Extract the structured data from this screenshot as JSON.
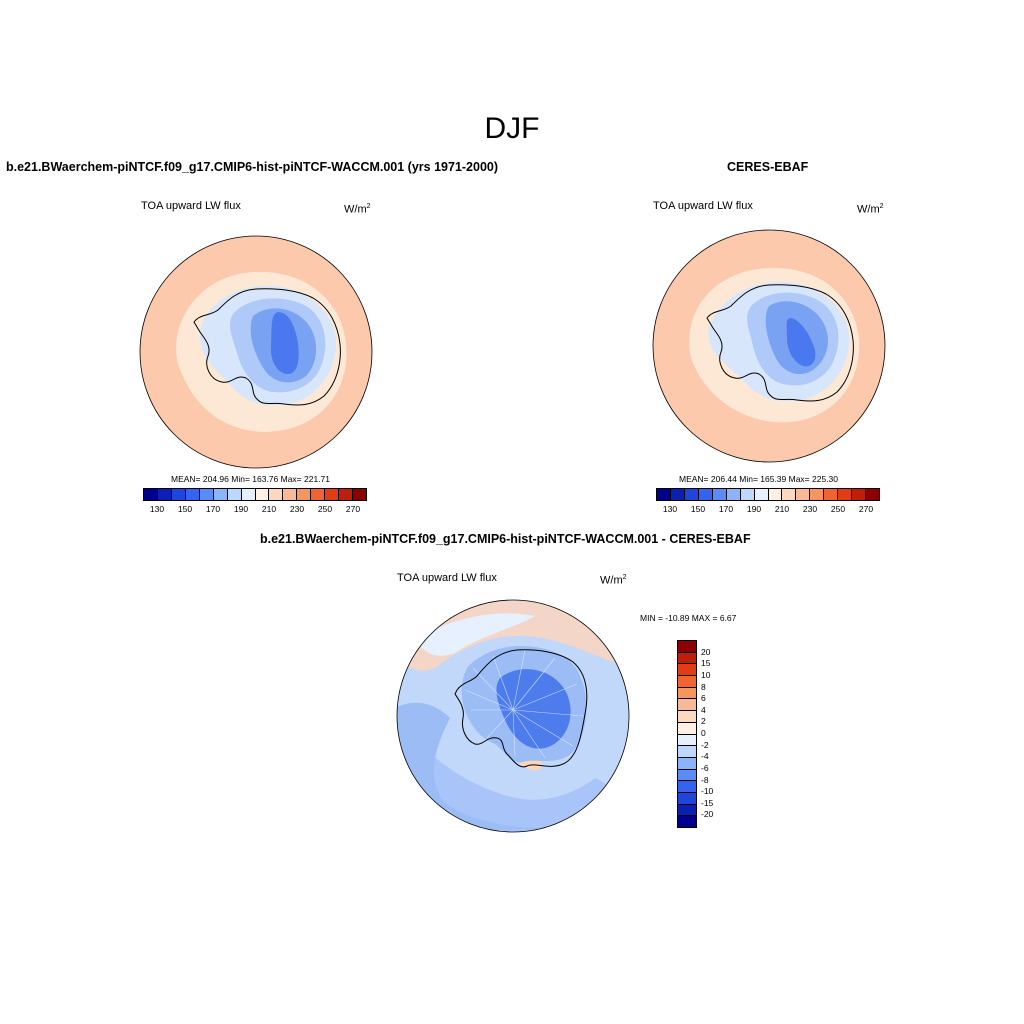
{
  "season": "DJF",
  "panels": {
    "model": {
      "title": "b.e21.BWaerchem-piNTCF.f09_g17.CMIP6-hist-piNTCF-WACCM.001 (yrs 1971-2000)",
      "variable": "TOA upward LW flux",
      "units_base": "W/m",
      "units_exp": "2",
      "stats": "MEAN= 204.96  Min= 163.76  Max= 221.71"
    },
    "obs": {
      "title": "CERES-EBAF",
      "variable": "TOA upward LW flux",
      "units_base": "W/m",
      "units_exp": "2",
      "stats": "MEAN= 206.44  Min= 165.39  Max= 225.30"
    },
    "diff": {
      "title": "b.e21.BWaerchem-piNTCF.f09_g17.CMIP6-hist-piNTCF-WACCM.001 - CERES-EBAF",
      "variable": "TOA upward LW flux",
      "units_base": "W/m",
      "units_exp": "2",
      "stats": "MIN = -10.89 MAX =   6.67"
    }
  },
  "colorbar_abs": {
    "ticks": [
      "130",
      "150",
      "170",
      "190",
      "210",
      "230",
      "250",
      "270"
    ],
    "colors": [
      "#00008c",
      "#0a1fb4",
      "#1e46dc",
      "#3264f0",
      "#5a8cf5",
      "#8cb4fa",
      "#bed7fc",
      "#e6f0fe",
      "#fff0e1",
      "#fdd7be",
      "#fab996",
      "#f5965f",
      "#f06432",
      "#e13c14",
      "#be1e0a",
      "#8c0000"
    ]
  },
  "colorbar_diff": {
    "ticks": [
      "20",
      "15",
      "10",
      "8",
      "6",
      "4",
      "2",
      "0",
      "-2",
      "-4",
      "-6",
      "-8",
      "-10",
      "-15",
      "-20"
    ],
    "colors": [
      "#8c0000",
      "#be1e0a",
      "#e13c14",
      "#f06432",
      "#f5965f",
      "#fab996",
      "#fdd7be",
      "#fff0e1",
      "#e6f0fe",
      "#bed7fc",
      "#8cb4fa",
      "#5a8cf5",
      "#3264f0",
      "#1e46dc",
      "#0a1fb4",
      "#00008c"
    ]
  },
  "map_colors": {
    "ocean_warm": "#fcc9ad",
    "ocean_light": "#fde8d6",
    "ice_light": "#d7e6fb",
    "ice_mid": "#afc9f8",
    "ice_deep": "#7aa2f2",
    "ice_core": "#4a78ee",
    "diff_blue_light": "#c2d8fb",
    "diff_blue_mid": "#9cbcf6",
    "diff_blue_deep": "#4d7ded",
    "diff_pos": "#fbd6bd"
  }
}
